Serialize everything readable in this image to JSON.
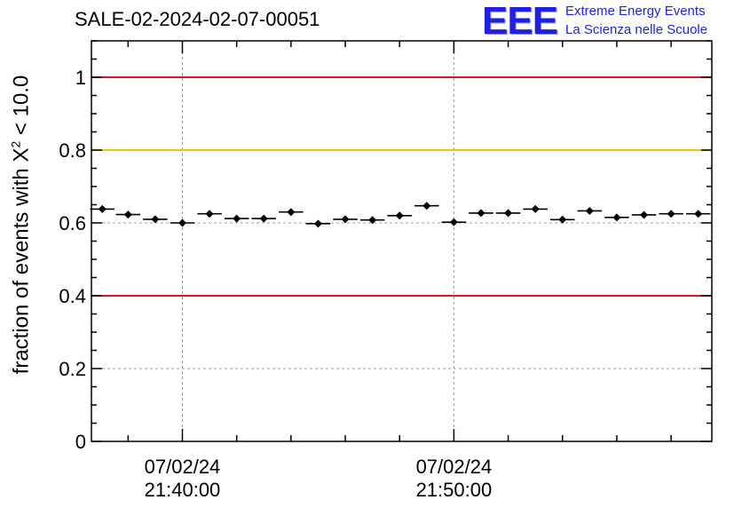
{
  "header": {
    "title": "SALE-02-2024-02-07-00051",
    "logo_mark": "EEE",
    "logo_line1": "Extreme Energy Events",
    "logo_line2": "La Scienza nelle Scuole"
  },
  "colors": {
    "red_line": "#e8141b",
    "yellow_line": "#f5c400",
    "points": "#000000",
    "logo_blue": "#1f1fe6"
  },
  "chart_data": {
    "type": "scatter",
    "ylabel_prefix": "fraction of events with X",
    "ylabel_sup": "2",
    "ylabel_suffix": " < 10.0",
    "ylim": [
      0,
      1.1
    ],
    "yticks": [
      {
        "value": 0,
        "label": "0"
      },
      {
        "value": 0.2,
        "label": "0.2"
      },
      {
        "value": 0.4,
        "label": "0.4"
      },
      {
        "value": 0.6,
        "label": "0.6"
      },
      {
        "value": 0.8,
        "label": "0.8"
      },
      {
        "value": 1,
        "label": "1"
      }
    ],
    "x_unit": "minutes",
    "x_range": [
      -3.35,
      19.5
    ],
    "xticks": [
      {
        "value": 0,
        "line1": "07/02/24",
        "line2": "21:40:00"
      },
      {
        "value": 10,
        "line1": "07/02/24",
        "line2": "21:50:00"
      }
    ],
    "grid": true,
    "reference_lines": [
      {
        "y": 1.0,
        "color": "red"
      },
      {
        "y": 0.8,
        "color": "yellow"
      },
      {
        "y": 0.4,
        "color": "red"
      }
    ],
    "bin_half_width": 0.45,
    "x": [
      -2.95,
      -2.0,
      -1.0,
      0.0,
      1.0,
      2.0,
      3.0,
      4.0,
      5.0,
      6.0,
      7.0,
      8.0,
      9.0,
      10.0,
      11.0,
      12.0,
      13.0,
      14.0,
      15.0,
      16.0,
      17.0,
      18.0,
      19.0
    ],
    "y": [
      0.638,
      0.623,
      0.61,
      0.6,
      0.625,
      0.612,
      0.612,
      0.63,
      0.598,
      0.61,
      0.608,
      0.62,
      0.647,
      0.602,
      0.627,
      0.627,
      0.638,
      0.609,
      0.633,
      0.615,
      0.622,
      0.625,
      0.625
    ],
    "y_err": [
      0.008,
      0.008,
      0.008,
      0.008,
      0.008,
      0.008,
      0.008,
      0.008,
      0.008,
      0.008,
      0.008,
      0.008,
      0.008,
      0.008,
      0.008,
      0.008,
      0.008,
      0.008,
      0.008,
      0.008,
      0.008,
      0.008,
      0.008
    ]
  }
}
